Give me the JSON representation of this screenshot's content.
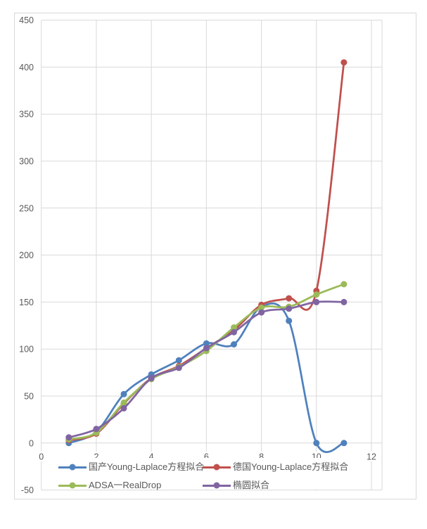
{
  "chart_data": {
    "type": "line",
    "title": "",
    "xlabel": "",
    "ylabel": "",
    "x": [
      1,
      2,
      3,
      4,
      5,
      6,
      7,
      8,
      9,
      10,
      11
    ],
    "series": [
      {
        "name": "国产Young-Laplace方程拟合",
        "color": "#4F81BD",
        "values": [
          0,
          12,
          52,
          73,
          88,
          106,
          105,
          145,
          130,
          0,
          0
        ]
      },
      {
        "name": "德国Young-Laplace方程拟合",
        "color": "#C0504D",
        "values": [
          3,
          10,
          42,
          69,
          82,
          101,
          120,
          147,
          154,
          162,
          405
        ]
      },
      {
        "name": "ADSA一RealDrop",
        "color": "#9BBB59",
        "values": [
          4,
          11,
          43,
          68,
          81,
          98,
          123,
          144,
          145,
          158,
          169
        ]
      },
      {
        "name": "椭圆拟合",
        "color": "#8064A2",
        "values": [
          6,
          15,
          37,
          69,
          80,
          101,
          118,
          139,
          143,
          150,
          150
        ]
      }
    ],
    "x_axis": {
      "min": 0,
      "max": 12,
      "tick_interval": 2,
      "tick_labels": [
        "0",
        "2",
        "4",
        "6",
        "8",
        "10",
        "12"
      ]
    },
    "y_axis": {
      "min": -50,
      "max": 450,
      "tick_interval": 50,
      "tick_labels": [
        "450",
        "400",
        "350",
        "300",
        "250",
        "200",
        "150",
        "100",
        "50",
        "0",
        "-50"
      ]
    },
    "grid": true,
    "smooth_lines": true,
    "markers": "circle",
    "legend_position": "bottom"
  },
  "styles": {
    "grid_color": "#D9D9D9",
    "border_color": "#D9D9D9",
    "axis_text_color": "#595959",
    "legend_text_color": "#595959",
    "background_color": "#FFFFFF"
  }
}
